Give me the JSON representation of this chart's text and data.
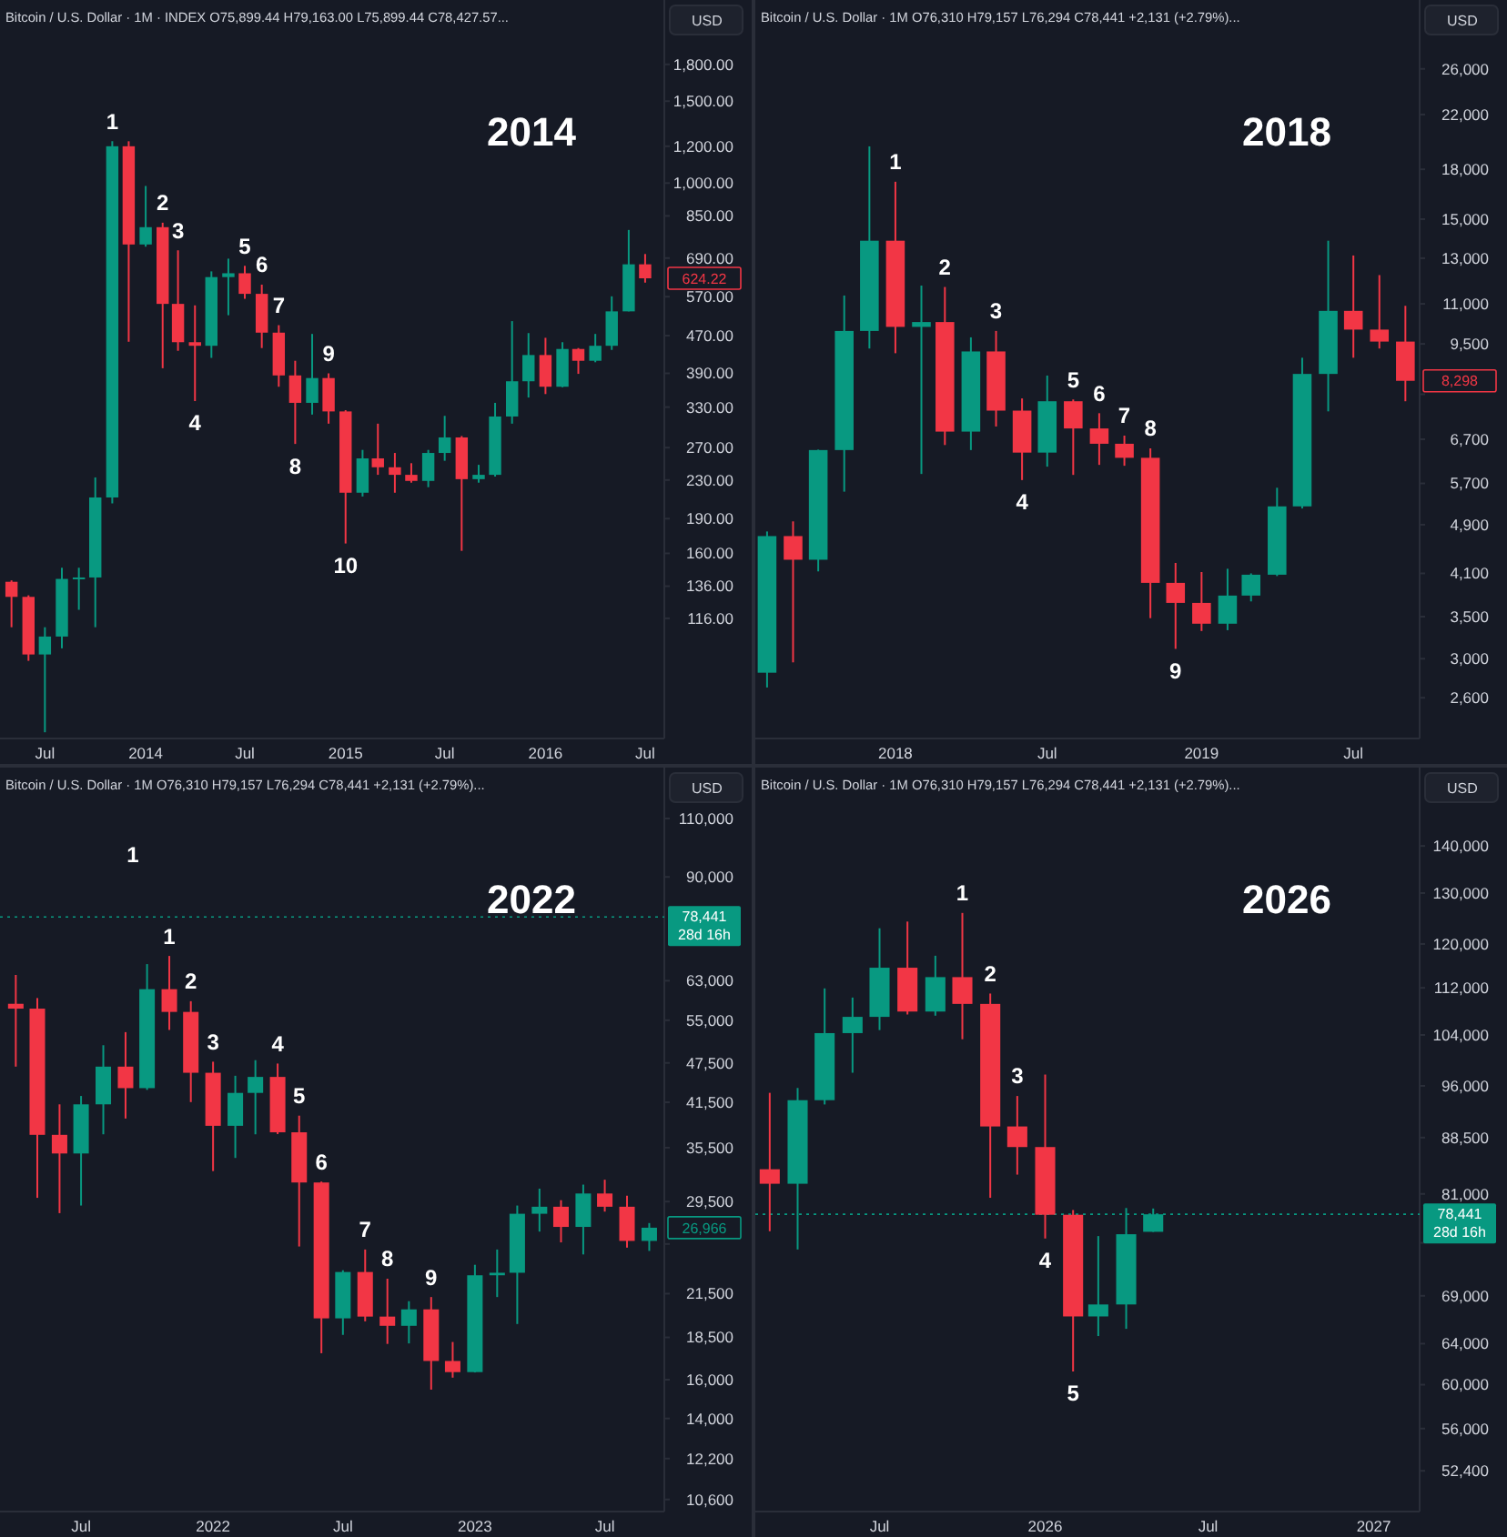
{
  "chart_data": [
    {
      "type": "candlestick",
      "title": "2014",
      "subtitle": "Bitcoin / U.S. Dollar · 1M · INDEX O75,899.44 H79,163.00 L75,899.44 C78,427.57...",
      "ylabel": "USD",
      "log": true,
      "x": [
        "2013-05",
        "2013-06",
        "2013-07",
        "2013-08",
        "2013-09",
        "2013-10",
        "2013-11",
        "2013-12",
        "2014-01",
        "2014-02",
        "2014-03",
        "2014-04",
        "2014-05",
        "2014-06",
        "2014-07",
        "2014-08",
        "2014-09",
        "2014-10",
        "2014-11",
        "2014-12",
        "2015-01",
        "2015-02",
        "2015-03",
        "2015-04",
        "2015-05",
        "2015-06",
        "2015-07",
        "2015-08",
        "2015-09",
        "2015-10",
        "2015-11",
        "2015-12",
        "2016-01",
        "2016-02",
        "2016-03",
        "2016-04",
        "2016-05",
        "2016-06",
        "2016-07"
      ],
      "ohlc": [
        [
          139,
          140,
          111,
          129
        ],
        [
          129,
          130,
          94,
          97
        ],
        [
          97,
          111,
          66,
          106
        ],
        [
          106,
          149,
          100,
          141
        ],
        [
          141,
          149,
          121,
          142
        ],
        [
          142,
          233,
          111,
          211
        ],
        [
          211,
          1230,
          205,
          1200
        ],
        [
          1200,
          1230,
          456,
          738
        ],
        [
          738,
          986,
          730,
          804
        ],
        [
          804,
          822,
          400,
          550
        ],
        [
          550,
          717,
          436,
          455
        ],
        [
          455,
          546,
          340,
          447
        ],
        [
          447,
          646,
          421,
          628
        ],
        [
          628,
          688,
          520,
          640
        ],
        [
          640,
          664,
          564,
          578
        ],
        [
          578,
          605,
          442,
          477
        ],
        [
          477,
          495,
          365,
          386
        ],
        [
          386,
          415,
          275,
          337
        ],
        [
          337,
          474,
          318,
          381
        ],
        [
          381,
          390,
          304,
          323
        ],
        [
          323,
          325,
          168,
          216
        ],
        [
          216,
          267,
          212,
          256
        ],
        [
          256,
          304,
          236,
          245
        ],
        [
          245,
          263,
          216,
          236
        ],
        [
          236,
          250,
          227,
          229
        ],
        [
          229,
          267,
          222,
          263
        ],
        [
          263,
          316,
          253,
          284
        ],
        [
          284,
          286,
          162,
          231
        ],
        [
          231,
          248,
          227,
          236
        ],
        [
          236,
          337,
          234,
          315
        ],
        [
          315,
          505,
          304,
          375
        ],
        [
          375,
          476,
          346,
          427
        ],
        [
          427,
          465,
          352,
          365
        ],
        [
          365,
          455,
          364,
          440
        ],
        [
          440,
          442,
          389,
          415
        ],
        [
          415,
          474,
          412,
          447
        ],
        [
          447,
          571,
          438,
          530
        ],
        [
          530,
          793,
          530,
          669
        ],
        [
          669,
          704,
          611,
          624.22
        ]
      ],
      "xlim": [
        "2013-04-10",
        "2016-08-05"
      ],
      "ylim": [
        64,
        2475
      ],
      "xticks": [
        {
          "value": "2013-07",
          "label": "Jul"
        },
        {
          "value": "2014-01",
          "label": "2014"
        },
        {
          "value": "2014-07",
          "label": "Jul"
        },
        {
          "value": "2015-01",
          "label": "2015"
        },
        {
          "value": "2015-07",
          "label": "Jul"
        },
        {
          "value": "2016-01",
          "label": "2016"
        },
        {
          "value": "2016-07",
          "label": "Jul"
        }
      ],
      "yticks": [
        {
          "value": 1800,
          "label": "1,800.00"
        },
        {
          "value": 1500,
          "label": "1,500.00"
        },
        {
          "value": 1200,
          "label": "1,200.00"
        },
        {
          "value": 1000,
          "label": "1,000.00"
        },
        {
          "value": 850,
          "label": "850.00"
        },
        {
          "value": 690,
          "label": "690.00"
        },
        {
          "value": 570,
          "label": "570.00"
        },
        {
          "value": 470,
          "label": "470.00"
        },
        {
          "value": 390,
          "label": "390.00"
        },
        {
          "value": 330,
          "label": "330.00"
        },
        {
          "value": 270,
          "label": "270.00"
        },
        {
          "value": 230,
          "label": "230.00"
        },
        {
          "value": 190,
          "label": "190.00"
        },
        {
          "value": 160,
          "label": "160.00"
        },
        {
          "value": 136,
          "label": "136.00"
        },
        {
          "value": 116,
          "label": "116.00"
        }
      ],
      "annotations": [
        {
          "text": "1",
          "x": "2013-11",
          "y": 1230
        },
        {
          "text": "2",
          "x": "2014-02",
          "y": 822
        },
        {
          "text": "3",
          "x": "2014-03",
          "y": 717
        },
        {
          "text": "4",
          "x": "2014-04",
          "y": 340
        },
        {
          "text": "5",
          "x": "2014-07",
          "y": 664
        },
        {
          "text": "6",
          "x": "2014-08",
          "y": 605
        },
        {
          "text": "7",
          "x": "2014-09",
          "y": 495
        },
        {
          "text": "8",
          "x": "2014-10",
          "y": 275
        },
        {
          "text": "9",
          "x": "2014-12",
          "y": 390
        },
        {
          "text": "10",
          "x": "2015-01",
          "y": 168
        },
        {
          "text": "624.22",
          "x": "2016-07",
          "y": 624.22
        }
      ]
    },
    {
      "type": "candlestick",
      "title": "2018",
      "subtitle": "Bitcoin / U.S. Dollar · 1M O76,310 H79,157 L76,294 C78,441 +2,131 (+2.79%)...",
      "ylabel": "USD",
      "log": true,
      "x": [
        "2017-08",
        "2017-09",
        "2017-10",
        "2017-11",
        "2017-12",
        "2018-01",
        "2018-02",
        "2018-03",
        "2018-04",
        "2018-05",
        "2018-06",
        "2018-07",
        "2018-08",
        "2018-09",
        "2018-10",
        "2018-11",
        "2018-12",
        "2019-01",
        "2019-02",
        "2019-03",
        "2019-04",
        "2019-05",
        "2019-06",
        "2019-07",
        "2019-08",
        "2019-09"
      ],
      "ohlc": [
        [
          2850,
          4780,
          2700,
          4700
        ],
        [
          4700,
          4960,
          2960,
          4310
        ],
        [
          4310,
          6450,
          4130,
          6440
        ],
        [
          6440,
          11340,
          5530,
          9960
        ],
        [
          9960,
          19580,
          9340,
          13860
        ],
        [
          13860,
          17200,
          9180,
          10110
        ],
        [
          10110,
          11760,
          5900,
          10290
        ],
        [
          10290,
          11700,
          6560,
          6890
        ],
        [
          6890,
          9730,
          6440,
          9240
        ],
        [
          9240,
          9960,
          7020,
          7440
        ],
        [
          7440,
          7780,
          5770,
          6380
        ],
        [
          6380,
          8460,
          6060,
          7700
        ],
        [
          7700,
          7750,
          5880,
          6970
        ],
        [
          6970,
          7370,
          6100,
          6590
        ],
        [
          6590,
          6790,
          6080,
          6260
        ],
        [
          6260,
          6480,
          3480,
          3960
        ],
        [
          3960,
          4260,
          3110,
          3680
        ],
        [
          3680,
          4120,
          3320,
          3410
        ],
        [
          3410,
          4170,
          3330,
          3780
        ],
        [
          3780,
          4100,
          3700,
          4080
        ],
        [
          4080,
          5610,
          4060,
          5240
        ],
        [
          5240,
          9030,
          5200,
          8510
        ],
        [
          8510,
          13860,
          7420,
          10720
        ],
        [
          10720,
          13130,
          9030,
          10010
        ],
        [
          10010,
          12220,
          9340,
          9580
        ],
        [
          9580,
          10920,
          7700,
          8298
        ]
      ],
      "xlim": [
        "2017-07-18",
        "2019-09-18"
      ],
      "ylim": [
        2240,
        33460
      ],
      "xticks": [
        {
          "value": "2018-01",
          "label": "2018"
        },
        {
          "value": "2018-07",
          "label": "Jul"
        },
        {
          "value": "2019-01",
          "label": "2019"
        },
        {
          "value": "2019-07",
          "label": "Jul"
        }
      ],
      "yticks": [
        {
          "value": 26000,
          "label": "26,000"
        },
        {
          "value": 22000,
          "label": "22,000"
        },
        {
          "value": 18000,
          "label": "18,000"
        },
        {
          "value": 15000,
          "label": "15,000"
        },
        {
          "value": 13000,
          "label": "13,000"
        },
        {
          "value": 11000,
          "label": "11,000"
        },
        {
          "value": 9500,
          "label": "9,500"
        },
        {
          "value": 7900,
          "label": null
        },
        {
          "value": 6700,
          "label": "6,700"
        },
        {
          "value": 5700,
          "label": "5,700"
        },
        {
          "value": 4900,
          "label": "4,900"
        },
        {
          "value": 4100,
          "label": "4,100"
        },
        {
          "value": 3500,
          "label": "3,500"
        },
        {
          "value": 3000,
          "label": "3,000"
        },
        {
          "value": 2600,
          "label": "2,600"
        }
      ],
      "annotations": [
        {
          "text": "1",
          "x": "2018-01",
          "y": 17200
        },
        {
          "text": "2",
          "x": "2018-03",
          "y": 11700
        },
        {
          "text": "3",
          "x": "2018-05",
          "y": 9960
        },
        {
          "text": "4",
          "x": "2018-06",
          "y": 5770
        },
        {
          "text": "5",
          "x": "2018-08",
          "y": 7750
        },
        {
          "text": "6",
          "x": "2018-09",
          "y": 7370
        },
        {
          "text": "7",
          "x": "2018-10",
          "y": 6790
        },
        {
          "text": "8",
          "x": "2018-11",
          "y": 6480
        },
        {
          "text": "9",
          "x": "2018-12",
          "y": 3110
        },
        {
          "text": "8,298",
          "x": "2019-09",
          "y": 8298
        }
      ]
    },
    {
      "type": "candlestick",
      "title": "2022",
      "subtitle": "Bitcoin / U.S. Dollar · 1M O76,310 H79,157 L76,294 C78,441 +2,131 (+2.79%)...",
      "ylabel": "USD",
      "log": true,
      "x": [
        "2021-04",
        "2021-05",
        "2021-06",
        "2021-07",
        "2021-08",
        "2021-09",
        "2021-10",
        "2021-11",
        "2021-12",
        "2022-01",
        "2022-02",
        "2022-03",
        "2022-04",
        "2022-05",
        "2022-06",
        "2022-07",
        "2022-08",
        "2022-09",
        "2022-10",
        "2022-11",
        "2022-12",
        "2023-01",
        "2023-02",
        "2023-03",
        "2023-04",
        "2023-05",
        "2023-06",
        "2023-07",
        "2023-08",
        "2023-09"
      ],
      "ohlc": [
        [
          58200,
          64270,
          46900,
          57240
        ],
        [
          57240,
          59360,
          29880,
          37100
        ],
        [
          37100,
          41200,
          28350,
          34800
        ],
        [
          34800,
          42400,
          29100,
          41200
        ],
        [
          41200,
          50480,
          37170,
          46900
        ],
        [
          46900,
          52800,
          39240,
          43560
        ],
        [
          43560,
          66700,
          43300,
          61200
        ],
        [
          61200,
          68600,
          53200,
          56600
        ],
        [
          56600,
          58720,
          41520,
          45920
        ],
        [
          45920,
          47700,
          32760,
          38270
        ],
        [
          38270,
          45450,
          34270,
          42850
        ],
        [
          42850,
          47950,
          37170,
          45270
        ],
        [
          45270,
          47400,
          37200,
          37430
        ],
        [
          37430,
          39630,
          25280,
          31500
        ],
        [
          31500,
          31600,
          17520,
          19750
        ],
        [
          19750,
          23300,
          18660,
          23160
        ],
        [
          23160,
          25020,
          19550,
          19870
        ],
        [
          19870,
          22630,
          18090,
          19250
        ],
        [
          19250,
          20950,
          18120,
          20370
        ],
        [
          20370,
          21250,
          15460,
          17060
        ],
        [
          17060,
          18210,
          16110,
          16420
        ],
        [
          16420,
          23740,
          16400,
          22900
        ],
        [
          22900,
          25020,
          21250,
          23100
        ],
        [
          23100,
          29100,
          19370,
          28290
        ],
        [
          28290,
          30840,
          26610,
          28980
        ],
        [
          28980,
          29640,
          25640,
          27040
        ],
        [
          27040,
          31270,
          24600,
          30330
        ],
        [
          30330,
          31800,
          28500,
          28980
        ],
        [
          28980,
          30100,
          25180,
          25770
        ],
        [
          25770,
          27400,
          24900,
          26966
        ]
      ],
      "xlim": [
        "2021-03-10",
        "2023-09-22"
      ],
      "ylim": [
        10170,
        131030
      ],
      "xticks": [
        {
          "value": "2021-07",
          "label": "Jul"
        },
        {
          "value": "2022-01",
          "label": "2022"
        },
        {
          "value": "2022-07",
          "label": "Jul"
        },
        {
          "value": "2023-01",
          "label": "2023"
        },
        {
          "value": "2023-07",
          "label": "Jul"
        }
      ],
      "yticks": [
        {
          "value": 110000,
          "label": "110,000"
        },
        {
          "value": 90000,
          "label": "90,000"
        },
        {
          "value": 63000,
          "label": "63,000"
        },
        {
          "value": 55000,
          "label": "55,000"
        },
        {
          "value": 47500,
          "label": "47,500"
        },
        {
          "value": 41500,
          "label": "41,500"
        },
        {
          "value": 35500,
          "label": "35,500"
        },
        {
          "value": 29500,
          "label": "29,500"
        },
        {
          "value": 25500,
          "label": null
        },
        {
          "value": 21500,
          "label": "21,500"
        },
        {
          "value": 18500,
          "label": "18,500"
        },
        {
          "value": 16000,
          "label": "16,000"
        },
        {
          "value": 14000,
          "label": "14,000"
        },
        {
          "value": 12200,
          "label": "12,200"
        },
        {
          "value": 10600,
          "label": "10,600"
        }
      ],
      "ref_lines": [
        {
          "axis": "y",
          "value": 78441,
          "label": "78,441\n28d 16h",
          "color": "#089981",
          "line_style": "dotted"
        }
      ],
      "annotations": [
        "1",
        {
          "text": "1",
          "x": "2021-11",
          "y": 68600
        },
        {
          "text": "2",
          "x": "2021-12",
          "y": 58720
        },
        {
          "text": "3",
          "x": "2022-01",
          "y": 47700
        },
        {
          "text": "4",
          "x": "2022-04",
          "y": 47400
        },
        {
          "text": "5",
          "x": "2022-05",
          "y": 39630
        },
        {
          "text": "6",
          "x": "2022-06",
          "y": 31600
        },
        {
          "text": "7",
          "x": "2022-08",
          "y": 25020
        },
        {
          "text": "8",
          "x": "2022-09",
          "y": 22630
        },
        {
          "text": "9",
          "x": "2022-11",
          "y": 21250
        },
        {
          "text": "26,966",
          "x": "2023-09",
          "y": 26966
        }
      ]
    },
    {
      "type": "candlestick",
      "title": "2026",
      "subtitle": "Bitcoin / U.S. Dollar · 1M O76,310 H79,157 L76,294 C78,441 +2,131 (+2.79%)...",
      "ylabel": "USD",
      "log": true,
      "x": [
        "2025-03",
        "2025-04",
        "2025-05",
        "2025-06",
        "2025-07",
        "2025-08",
        "2025-09",
        "2025-10",
        "2025-11",
        "2025-12",
        "2026-01",
        "2026-02",
        "2026-03",
        "2026-04",
        "2026-05"
      ],
      "ohlc": [
        [
          84200,
          94950,
          76380,
          82300
        ],
        [
          82300,
          95680,
          74220,
          93860
        ],
        [
          93860,
          111900,
          93230,
          104300
        ],
        [
          104300,
          110300,
          98000,
          107000
        ],
        [
          107000,
          123000,
          104800,
          115600
        ],
        [
          115600,
          124300,
          107400,
          107900
        ],
        [
          107900,
          117800,
          107200,
          113900
        ],
        [
          113900,
          126000,
          103300,
          109200
        ],
        [
          109200,
          111000,
          80500,
          90060
        ],
        [
          90060,
          94480,
          83490,
          87190
        ],
        [
          87190,
          97720,
          75510,
          78380
        ],
        [
          78380,
          78970,
          61260,
          66800
        ],
        [
          66800,
          75800,
          64770,
          68070
        ],
        [
          68070,
          79220,
          65510,
          76020
        ],
        [
          76310,
          79157,
          76294,
          78441
        ]
      ],
      "xlim": [
        "2025-02-13",
        "2027-02-21"
      ],
      "ylim": [
        49150,
        158359
      ],
      "xticks": [
        {
          "value": "2025-07",
          "label": "Jul"
        },
        {
          "value": "2026-01",
          "label": "2026"
        },
        {
          "value": "2026-07",
          "label": "Jul"
        },
        {
          "value": "2027-01",
          "label": "2027"
        }
      ],
      "yticks": [
        {
          "value": 140000,
          "label": "140,000"
        },
        {
          "value": 130000,
          "label": "130,000"
        },
        {
          "value": 120000,
          "label": "120,000"
        },
        {
          "value": 112000,
          "label": "112,000"
        },
        {
          "value": 104000,
          "label": "104,000"
        },
        {
          "value": 96000,
          "label": "96,000"
        },
        {
          "value": 88500,
          "label": "88,500"
        },
        {
          "value": 81000,
          "label": "81,000"
        },
        {
          "value": 75000,
          "label": null
        },
        {
          "value": 69000,
          "label": "69,000"
        },
        {
          "value": 64000,
          "label": "64,000"
        },
        {
          "value": 60000,
          "label": "60,000"
        },
        {
          "value": 56000,
          "label": "56,000"
        },
        {
          "value": 52400,
          "label": "52,400"
        }
      ],
      "ref_lines": [
        {
          "axis": "y",
          "value": 78441,
          "label": "78,441\n28d 16h",
          "color": "#089981",
          "line_style": "dotted"
        }
      ],
      "annotations": [
        {
          "text": "1",
          "x": "2025-10",
          "y": 126000
        },
        {
          "text": "2",
          "x": "2025-11",
          "y": 111000
        },
        {
          "text": "3",
          "x": "2025-12",
          "y": 94480
        },
        {
          "text": "4",
          "x": "2026-01",
          "y": 75510
        },
        {
          "text": "5",
          "x": "2026-02",
          "y": 61260
        }
      ]
    }
  ]
}
